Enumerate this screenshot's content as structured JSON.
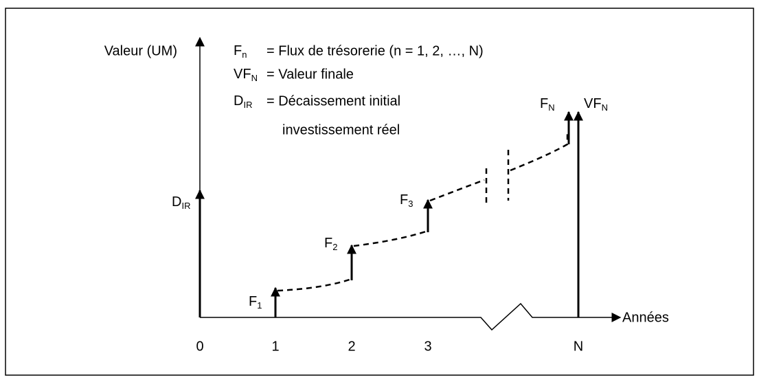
{
  "axes": {
    "y_label": "Valeur (UM)",
    "x_label": "Années",
    "x_ticks": [
      "0",
      "1",
      "2",
      "3",
      "N"
    ]
  },
  "legend": [
    {
      "symbol": "F",
      "sub": "n",
      "text": "= Flux de trésorerie (n = 1, 2, …, N)"
    },
    {
      "symbol": "VF",
      "sub": "N",
      "text": "= Valeur finale"
    },
    {
      "symbol": "D",
      "sub": "IR",
      "text": "= Décaissement initial",
      "text2": "investissement réel"
    }
  ],
  "flows": [
    {
      "symbol": "D",
      "sub": "IR"
    },
    {
      "symbol": "F",
      "sub": "1"
    },
    {
      "symbol": "F",
      "sub": "2"
    },
    {
      "symbol": "F",
      "sub": "3"
    },
    {
      "symbol": "F",
      "sub": "N"
    },
    {
      "symbol": "VF",
      "sub": "N"
    }
  ]
}
